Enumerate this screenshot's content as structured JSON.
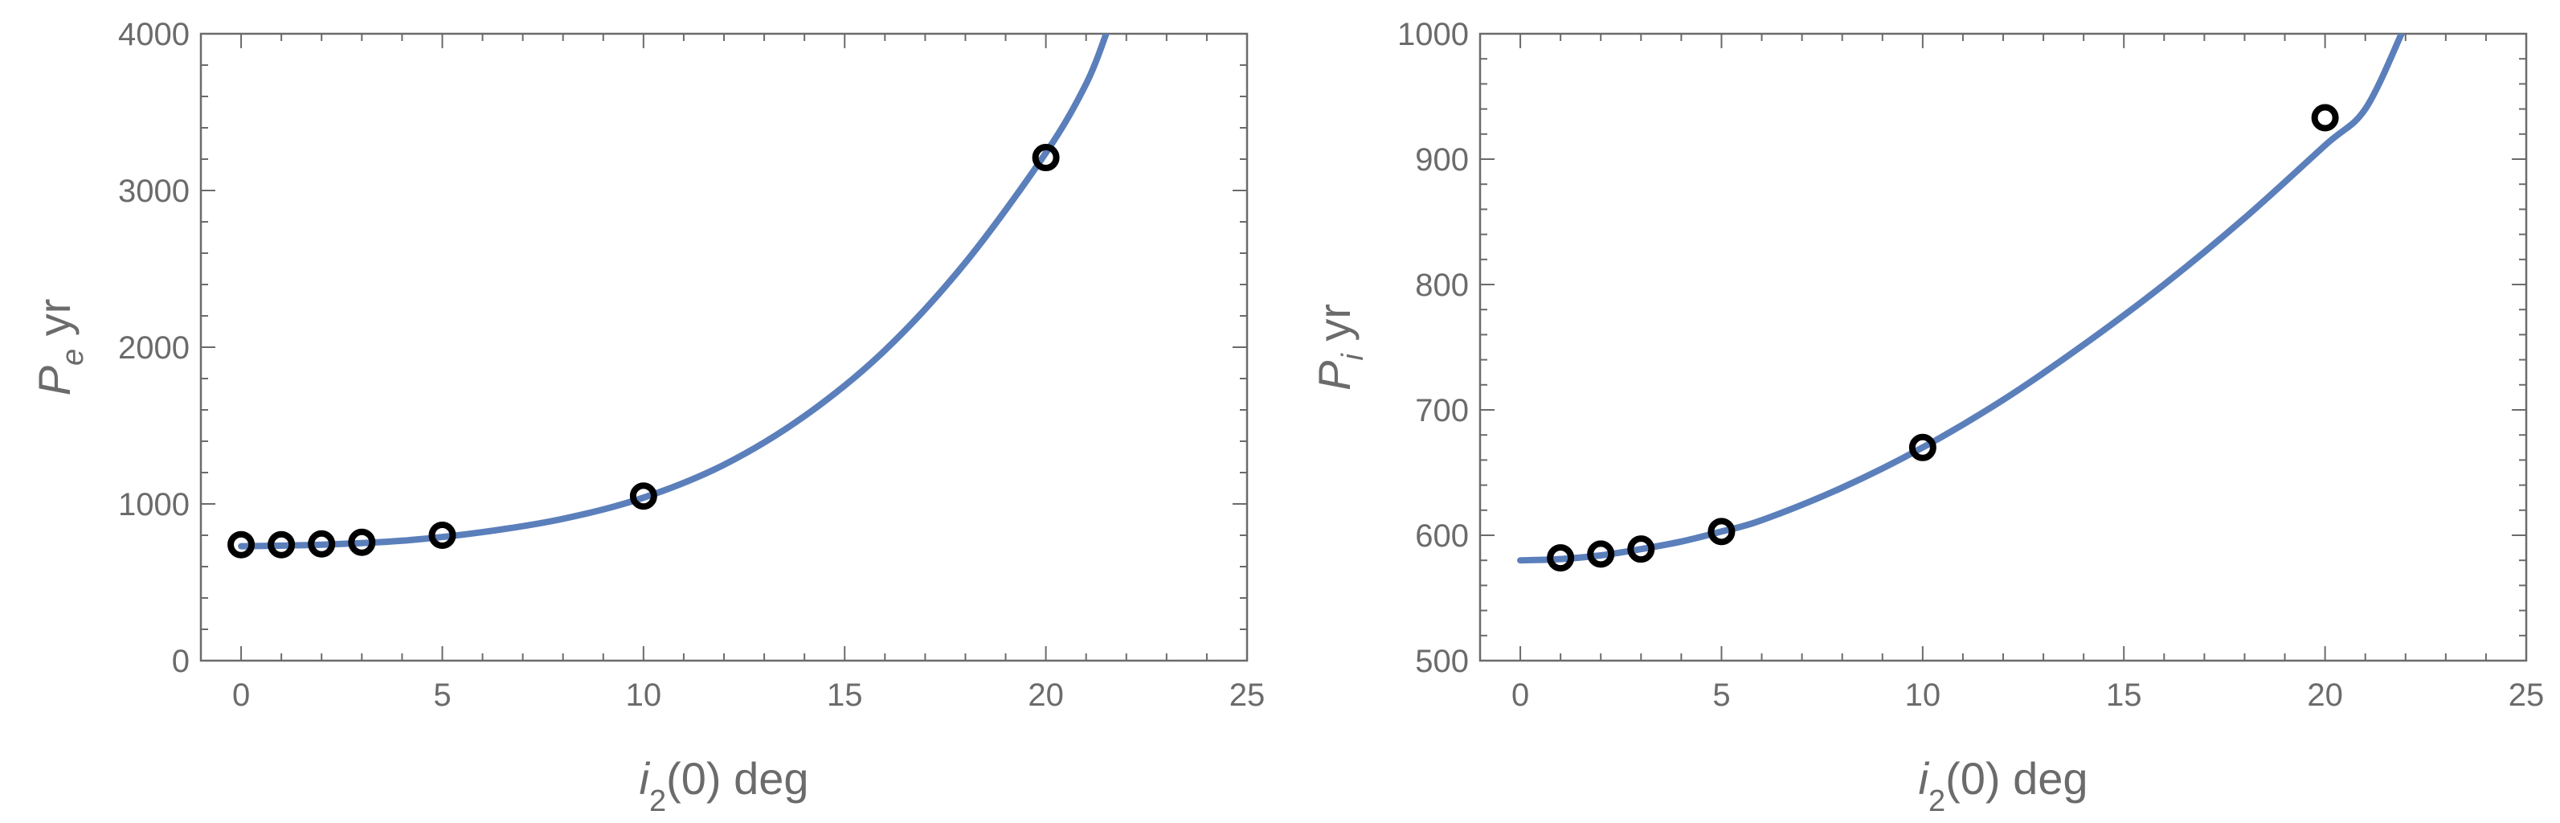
{
  "chart_data": [
    {
      "type": "scatter",
      "title": "",
      "xlabel": {
        "italic": "i",
        "sub": "2",
        "rest": "(0)  deg"
      },
      "ylabel": {
        "italic": "P",
        "sub": "e",
        "rest": "  yr"
      },
      "xlim": [
        -1,
        25
      ],
      "ylim": [
        0,
        4000
      ],
      "x_ticks": [
        0,
        5,
        10,
        15,
        20,
        25
      ],
      "y_ticks": [
        0,
        1000,
        2000,
        3000,
        4000
      ],
      "grid": false,
      "points": {
        "x": [
          0,
          1,
          2,
          3,
          5,
          10,
          20
        ],
        "y": [
          740,
          740,
          745,
          755,
          800,
          1050,
          3210
        ]
      },
      "fit_curve": {
        "x": [
          0,
          2,
          4,
          6,
          8,
          10,
          12,
          14,
          16,
          18,
          20,
          21,
          21.5
        ],
        "y": [
          730,
          740,
          765,
          820,
          905,
          1040,
          1250,
          1560,
          1980,
          2540,
          3240,
          3680,
          4000
        ]
      },
      "curve_color": "#5b7fbb",
      "marker_color": "#000000"
    },
    {
      "type": "scatter",
      "title": "",
      "xlabel": {
        "italic": "i",
        "sub": "2",
        "rest": "(0)  deg"
      },
      "ylabel": {
        "italic": "P",
        "sub": "i",
        "rest": "  yr"
      },
      "xlim": [
        -1,
        25
      ],
      "ylim": [
        500,
        1000
      ],
      "x_ticks": [
        0,
        5,
        10,
        15,
        20,
        25
      ],
      "y_ticks": [
        500,
        600,
        700,
        800,
        900,
        1000
      ],
      "grid": false,
      "points": {
        "x": [
          1,
          2,
          3,
          5,
          10,
          20
        ],
        "y": [
          582,
          585,
          589,
          603,
          670,
          933
        ]
      },
      "fit_curve": {
        "x": [
          0,
          1,
          2,
          3,
          4,
          5,
          6,
          8,
          10,
          12,
          14,
          16,
          18,
          20,
          21,
          21.9
        ],
        "y": [
          580,
          581,
          584,
          589,
          595,
          603,
          612,
          638,
          670,
          708,
          752,
          800,
          853,
          911,
          940,
          1000
        ]
      },
      "curve_color": "#5b7fbb",
      "marker_color": "#000000"
    }
  ]
}
